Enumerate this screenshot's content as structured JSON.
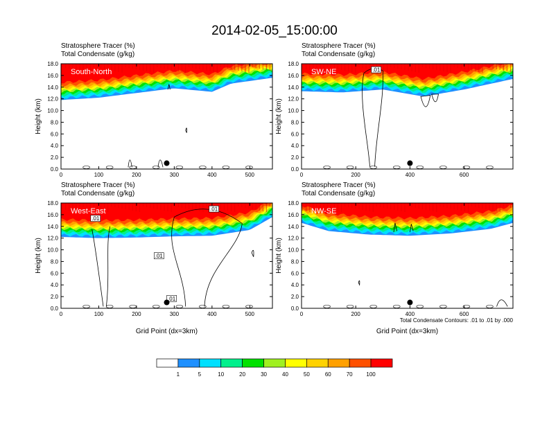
{
  "title": "2014-02-05_15:00:00",
  "colors": {
    "levels": [
      "#ffffff",
      "#1e90ff",
      "#00e0ff",
      "#00f08c",
      "#00e100",
      "#a0f020",
      "#ffff00",
      "#ffd200",
      "#ffa000",
      "#ff5000",
      "#ff0000"
    ],
    "contour": "#000000",
    "marker": "#000000"
  },
  "colorbar": {
    "labels": [
      "1",
      "5",
      "10",
      "20",
      "30",
      "40",
      "50",
      "60",
      "70",
      "100"
    ]
  },
  "figure_note": "Total Condensate Contours: .01 to .01 by .000",
  "chart_data": [
    {
      "type": "heatmap",
      "panel_label": "South-North",
      "header_line1": "Stratosphere Tracer   (%)",
      "header_line2": "Total Condensate   (g/kg)",
      "ylabel": "Height (km)",
      "xlabel": "",
      "xlim": [
        0,
        560
      ],
      "ylim": [
        0,
        18
      ],
      "xticks": [
        0,
        100,
        200,
        300,
        400,
        500
      ],
      "yticks": [
        "0.0",
        "2.0",
        "4.0",
        "6.0",
        "8.0",
        "10.0",
        "12.0",
        "14.0",
        "16.0",
        "18.0"
      ],
      "marker_x": 280,
      "tracer_base_km": [
        [
          0,
          11.8
        ],
        [
          100,
          12.2
        ],
        [
          200,
          13.0
        ],
        [
          300,
          13.8
        ],
        [
          400,
          13.2
        ],
        [
          450,
          14.6
        ],
        [
          560,
          15.6
        ]
      ],
      "contour_labels": []
    },
    {
      "type": "heatmap",
      "panel_label": "SW-NE",
      "header_line1": "Stratosphere Tracer   (%)",
      "header_line2": "Total Condensate   (g/kg)",
      "ylabel": "Height (km)",
      "xlabel": "",
      "xlim": [
        0,
        780
      ],
      "ylim": [
        0,
        18
      ],
      "xticks": [
        0,
        200,
        400,
        600
      ],
      "yticks": [
        "0.0",
        "2.0",
        "4.0",
        "6.0",
        "8.0",
        "10.0",
        "12.0",
        "14.0",
        "16.0",
        "18.0"
      ],
      "marker_x": 400,
      "tracer_base_km": [
        [
          0,
          13.3
        ],
        [
          150,
          13.1
        ],
        [
          300,
          13.6
        ],
        [
          450,
          12.4
        ],
        [
          600,
          13.6
        ],
        [
          700,
          14.6
        ],
        [
          780,
          15.4
        ]
      ],
      "contour_labels": [
        ".01"
      ]
    },
    {
      "type": "heatmap",
      "panel_label": "West-East",
      "header_line1": "Stratosphere Tracer   (%)",
      "header_line2": "Total Condensate   (g/kg)",
      "ylabel": "Height (km)",
      "xlabel": "Grid Point (dx=3km)",
      "xlim": [
        0,
        560
      ],
      "ylim": [
        0,
        18
      ],
      "xticks": [
        0,
        100,
        200,
        300,
        400,
        500
      ],
      "yticks": [
        "0.0",
        "2.0",
        "4.0",
        "6.0",
        "8.0",
        "10.0",
        "12.0",
        "14.0",
        "16.0",
        "18.0"
      ],
      "marker_x": 280,
      "tracer_base_km": [
        [
          0,
          12.2
        ],
        [
          100,
          12.0
        ],
        [
          200,
          12.1
        ],
        [
          300,
          12.3
        ],
        [
          400,
          12.4
        ],
        [
          500,
          13.4
        ],
        [
          560,
          15.6
        ]
      ],
      "contour_labels": [
        ".01",
        ".01",
        ".01",
        ".01"
      ]
    },
    {
      "type": "heatmap",
      "panel_label": "NW-SE",
      "header_line1": "Stratosphere Tracer   (%)",
      "header_line2": "Total Condensate   (g/kg)",
      "ylabel": "Height (km)",
      "xlabel": "Grid Point (dx=3km)",
      "xlim": [
        0,
        780
      ],
      "ylim": [
        0,
        18
      ],
      "xticks": [
        0,
        200,
        400,
        600
      ],
      "yticks": [
        "0.0",
        "2.0",
        "4.0",
        "6.0",
        "8.0",
        "10.0",
        "12.0",
        "14.0",
        "16.0",
        "18.0"
      ],
      "marker_x": 400,
      "tracer_base_km": [
        [
          0,
          14.6
        ],
        [
          100,
          13.2
        ],
        [
          250,
          12.6
        ],
        [
          400,
          12.4
        ],
        [
          550,
          12.8
        ],
        [
          700,
          13.6
        ],
        [
          780,
          14.6
        ]
      ],
      "contour_labels": []
    }
  ]
}
